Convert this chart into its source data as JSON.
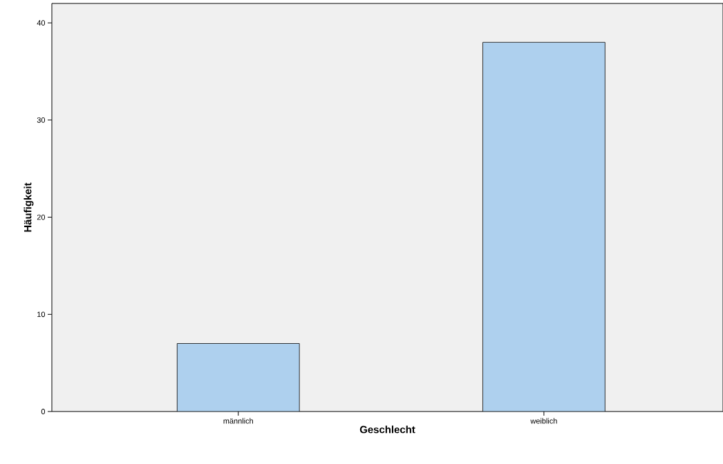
{
  "chart_data": {
    "type": "bar",
    "xlabel": "Geschlecht",
    "ylabel": "Häufigkeit",
    "categories": [
      "männlich",
      "weiblich"
    ],
    "values": [
      7,
      38
    ],
    "color": "#aed0ee",
    "ylim": [
      0,
      42
    ],
    "yticks": [
      0,
      10,
      20,
      30,
      40
    ],
    "grid": false
  }
}
